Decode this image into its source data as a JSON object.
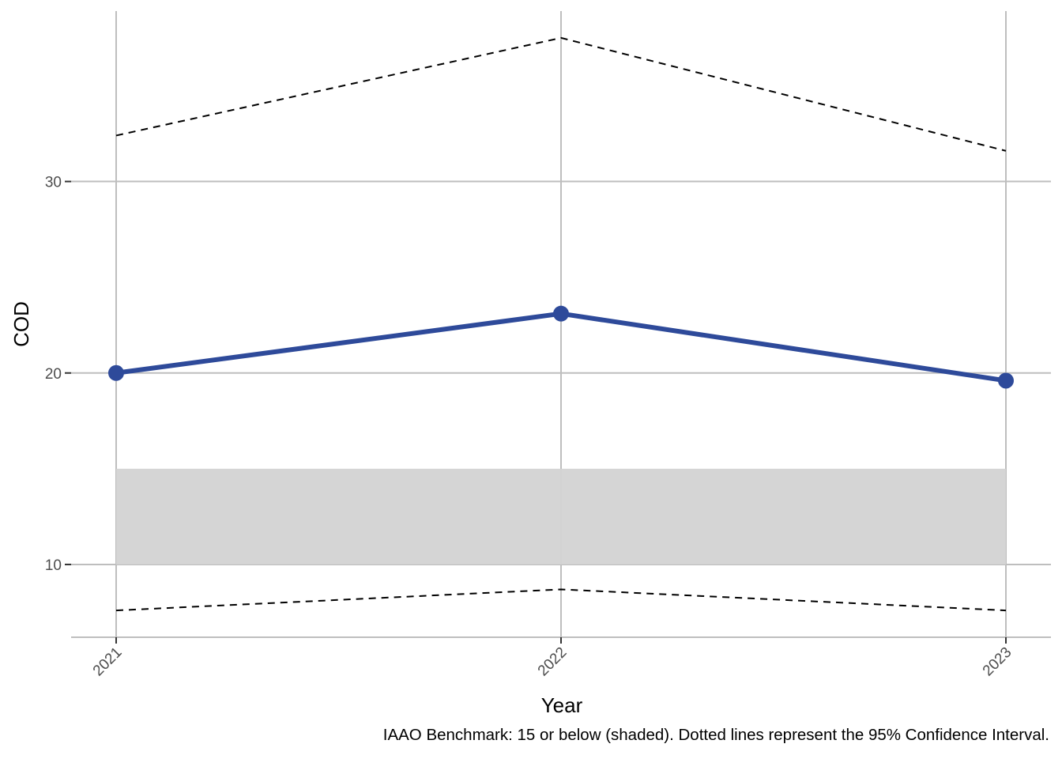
{
  "chart_data": {
    "type": "line",
    "title": "",
    "xlabel": "Year",
    "ylabel": "COD",
    "categories": [
      "2021",
      "2022",
      "2023"
    ],
    "series": [
      {
        "values": [
          20.0,
          23.1,
          19.6
        ],
        "color": "#2E4A9A",
        "style": "solid",
        "markers": true
      },
      {
        "values": [
          32.4,
          37.5,
          31.6
        ],
        "color": "#000000",
        "style": "dashed"
      },
      {
        "values": [
          7.6,
          8.7,
          7.6
        ],
        "color": "#000000",
        "style": "dashed"
      }
    ],
    "benchmark_band": {
      "from": 10,
      "to": 15,
      "color": "#D3D3D3"
    },
    "yticks": [
      10,
      20,
      30
    ],
    "ylim": [
      6.2,
      38.9
    ],
    "grid": true,
    "caption": "IAAO Benchmark: 15 or below (shaded). Dotted lines represent the 95% Confidence Interval."
  }
}
